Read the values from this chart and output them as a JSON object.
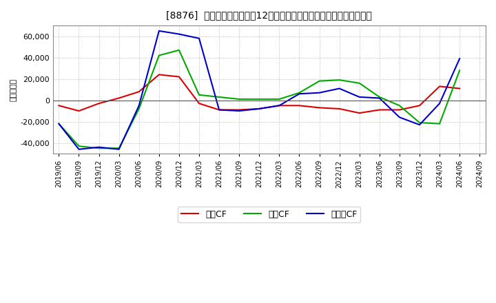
{
  "title": "[8876]  キャッシュフローの12か月移動合計の対前年同期増減額の推移",
  "ylabel": "（百万円）",
  "background_color": "#ffffff",
  "plot_bg_color": "#ffffff",
  "grid_color": "#999999",
  "dates": [
    "2019/06",
    "2019/09",
    "2019/12",
    "2020/03",
    "2020/06",
    "2020/09",
    "2020/12",
    "2021/03",
    "2021/06",
    "2021/09",
    "2021/12",
    "2022/03",
    "2022/06",
    "2022/09",
    "2022/12",
    "2023/03",
    "2023/06",
    "2023/09",
    "2023/12",
    "2024/03",
    "2024/06",
    "2024/09"
  ],
  "operating_cf": [
    -5000,
    -10000,
    -3000,
    2000,
    8000,
    24000,
    22000,
    -3000,
    -9000,
    -9000,
    -8000,
    -5000,
    -5000,
    -7000,
    -8000,
    -12000,
    -9000,
    -9000,
    -5000,
    13000,
    11000,
    null
  ],
  "investing_cf": [
    -22000,
    -43000,
    -45000,
    -45000,
    -8000,
    42000,
    47000,
    5000,
    3000,
    1000,
    1000,
    1000,
    7000,
    18000,
    19000,
    16000,
    3000,
    -5000,
    -21000,
    -22000,
    28000,
    null
  ],
  "free_cf": [
    -22000,
    -46000,
    -44000,
    -46000,
    -5000,
    65000,
    62000,
    58000,
    -9000,
    -10000,
    -8000,
    -5000,
    6000,
    7000,
    11000,
    3000,
    2000,
    -16000,
    -23000,
    -3000,
    39000,
    null
  ],
  "series_colors": {
    "operating": "#dd0000",
    "investing": "#00aa00",
    "free": "#0000cc"
  },
  "legend_labels": {
    "operating": "営業CF",
    "investing": "投資CF",
    "free": "フリーCF"
  },
  "ylim": [
    -50000,
    70000
  ],
  "yticks": [
    -40000,
    -20000,
    0,
    20000,
    40000,
    60000
  ]
}
